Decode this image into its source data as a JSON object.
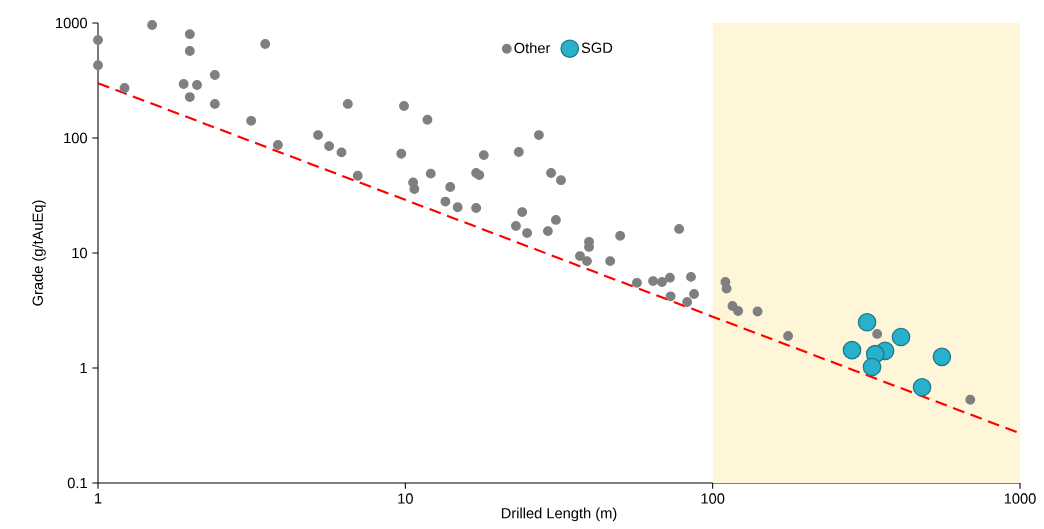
{
  "chart_data": {
    "type": "scatter",
    "xlabel": "Drilled Length (m)",
    "ylabel": "Grade (g/tAuEq)",
    "log": "xy",
    "xlim": [
      1,
      1000
    ],
    "ylim": [
      0.1,
      1000
    ],
    "xticks": [
      1,
      10,
      100,
      1000
    ],
    "yticks": [
      0.1,
      1,
      10,
      100,
      1000
    ],
    "grid": false,
    "legend": "top",
    "bands": [
      {
        "axis": "x",
        "from": 100,
        "to": 1000,
        "color": "#fff5d9"
      }
    ],
    "series": [
      {
        "name": "Other",
        "color": "#7f7f7f",
        "marker": "circle",
        "x": [
          1,
          1,
          1.22,
          1.5,
          1.99,
          1.99,
          1.9,
          2.1,
          1.99,
          2.4,
          2.4,
          3.5,
          3.15,
          3.85,
          9.9,
          11.8,
          6.5,
          5.2,
          5.65,
          6.2,
          7.0,
          9.7,
          10.6,
          10.7,
          12.1,
          14.0,
          13.5,
          14.8,
          17,
          17,
          17.4,
          18.0,
          23.4,
          27.2,
          29.8,
          32.1,
          24.0,
          22.9,
          24.9,
          29.1,
          30.9,
          39.6,
          39.6,
          37,
          39,
          46.4,
          50,
          56.7,
          64,
          68.4,
          72.6,
          77.8,
          85,
          73,
          87,
          82.6,
          110,
          111,
          116,
          121,
          140,
          176,
          343,
          689
        ],
        "values": [
          710,
          430,
          272,
          960,
          800,
          571,
          295,
          289,
          227,
          353,
          198,
          657,
          141,
          87,
          190,
          144,
          198,
          106,
          85,
          75,
          47,
          73,
          41,
          36,
          49,
          37.5,
          28,
          25,
          24.6,
          49.6,
          47.6,
          71,
          75.5,
          106,
          49.6,
          43,
          22.7,
          17.2,
          14.9,
          15.5,
          19.4,
          12.5,
          11.3,
          9.4,
          8.5,
          8.5,
          14.1,
          5.5,
          5.7,
          5.6,
          6.1,
          16.2,
          6.2,
          4.2,
          4.4,
          3.75,
          5.6,
          4.9,
          3.46,
          3.13,
          3.1,
          1.9,
          1.98,
          0.53
        ]
      },
      {
        "name": "SGD",
        "color": "#29b0cc",
        "marker": "circle",
        "x": [
          318,
          410,
          284,
          364,
          338,
          330,
          557,
          480
        ],
        "values": [
          2.5,
          1.86,
          1.43,
          1.41,
          1.32,
          1.02,
          1.25,
          0.68
        ]
      },
      {
        "type": "line",
        "color": "#ff0000",
        "line_style": "dashed",
        "marker": "none",
        "x": [
          1,
          1000
        ],
        "values": [
          300,
          0.27
        ]
      }
    ]
  }
}
